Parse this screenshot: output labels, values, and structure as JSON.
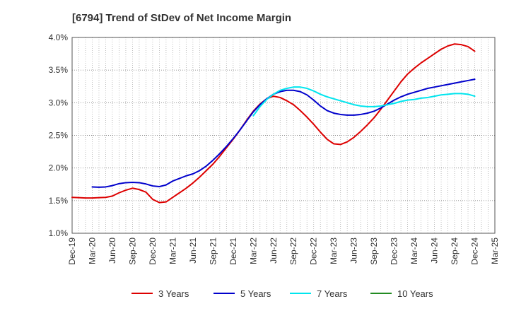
{
  "chart_data": {
    "type": "line",
    "title": "[6794]  Trend of StDev of Net Income Margin",
    "xlabel": "",
    "ylabel": "",
    "x_ticks": [
      "Dec-19",
      "Mar-20",
      "Jun-20",
      "Sep-20",
      "Dec-20",
      "Mar-21",
      "Jun-21",
      "Sep-21",
      "Dec-21",
      "Mar-22",
      "Jun-22",
      "Sep-22",
      "Dec-22",
      "Mar-23",
      "Jun-23",
      "Sep-23",
      "Dec-23",
      "Mar-24",
      "Jun-24",
      "Sep-24",
      "Dec-24",
      "Mar-25"
    ],
    "y_ticks": [
      "1.0%",
      "1.5%",
      "2.0%",
      "2.5%",
      "3.0%",
      "3.5%",
      "4.0%"
    ],
    "ylim": [
      1.0,
      4.0
    ],
    "y_unit": "%",
    "grid": "vertical and horizontal dotted",
    "legend_position": "bottom",
    "series": [
      {
        "name": "3 Years",
        "color": "#dd0000",
        "points": [
          [
            "Dec-19",
            1.55
          ],
          [
            "Jan-20",
            1.545
          ],
          [
            "Feb-20",
            1.54
          ],
          [
            "Mar-20",
            1.54
          ],
          [
            "Apr-20",
            1.545
          ],
          [
            "May-20",
            1.55
          ],
          [
            "Jun-20",
            1.57
          ],
          [
            "Jul-20",
            1.62
          ],
          [
            "Aug-20",
            1.66
          ],
          [
            "Sep-20",
            1.69
          ],
          [
            "Oct-20",
            1.67
          ],
          [
            "Nov-20",
            1.63
          ],
          [
            "Dec-20",
            1.52
          ],
          [
            "Jan-21",
            1.47
          ],
          [
            "Feb-21",
            1.48
          ],
          [
            "Mar-21",
            1.55
          ],
          [
            "Apr-21",
            1.62
          ],
          [
            "May-21",
            1.69
          ],
          [
            "Jun-21",
            1.77
          ],
          [
            "Jul-21",
            1.86
          ],
          [
            "Aug-21",
            1.96
          ],
          [
            "Sep-21",
            2.06
          ],
          [
            "Oct-21",
            2.18
          ],
          [
            "Nov-21",
            2.31
          ],
          [
            "Dec-21",
            2.44
          ],
          [
            "Jan-22",
            2.58
          ],
          [
            "Feb-22",
            2.73
          ],
          [
            "Mar-22",
            2.87
          ],
          [
            "Apr-22",
            2.98
          ],
          [
            "May-22",
            3.06
          ],
          [
            "Jun-22",
            3.1
          ],
          [
            "Jul-22",
            3.08
          ],
          [
            "Aug-22",
            3.03
          ],
          [
            "Sep-22",
            2.97
          ],
          [
            "Oct-22",
            2.88
          ],
          [
            "Nov-22",
            2.78
          ],
          [
            "Dec-22",
            2.67
          ],
          [
            "Jan-23",
            2.55
          ],
          [
            "Feb-23",
            2.44
          ],
          [
            "Mar-23",
            2.37
          ],
          [
            "Apr-23",
            2.36
          ],
          [
            "May-23",
            2.4
          ],
          [
            "Jun-23",
            2.47
          ],
          [
            "Jul-23",
            2.56
          ],
          [
            "Aug-23",
            2.66
          ],
          [
            "Sep-23",
            2.77
          ],
          [
            "Oct-23",
            2.9
          ],
          [
            "Nov-23",
            3.04
          ],
          [
            "Dec-23",
            3.18
          ],
          [
            "Jan-24",
            3.32
          ],
          [
            "Feb-24",
            3.44
          ],
          [
            "Mar-24",
            3.53
          ],
          [
            "Apr-24",
            3.61
          ],
          [
            "May-24",
            3.68
          ],
          [
            "Jun-24",
            3.75
          ],
          [
            "Jul-24",
            3.82
          ],
          [
            "Aug-24",
            3.87
          ],
          [
            "Sep-24",
            3.9
          ],
          [
            "Oct-24",
            3.89
          ],
          [
            "Nov-24",
            3.86
          ],
          [
            "Dec-24",
            3.79
          ]
        ]
      },
      {
        "name": "5 Years",
        "color": "#0000cc",
        "points": [
          [
            "Mar-20",
            1.71
          ],
          [
            "Apr-20",
            1.705
          ],
          [
            "May-20",
            1.71
          ],
          [
            "Jun-20",
            1.73
          ],
          [
            "Jul-20",
            1.76
          ],
          [
            "Aug-20",
            1.775
          ],
          [
            "Sep-20",
            1.78
          ],
          [
            "Oct-20",
            1.775
          ],
          [
            "Nov-20",
            1.755
          ],
          [
            "Dec-20",
            1.725
          ],
          [
            "Jan-21",
            1.715
          ],
          [
            "Feb-21",
            1.74
          ],
          [
            "Mar-21",
            1.8
          ],
          [
            "Apr-21",
            1.84
          ],
          [
            "May-21",
            1.88
          ],
          [
            "Jun-21",
            1.91
          ],
          [
            "Jul-21",
            1.96
          ],
          [
            "Aug-21",
            2.03
          ],
          [
            "Sep-21",
            2.12
          ],
          [
            "Oct-21",
            2.22
          ],
          [
            "Nov-21",
            2.33
          ],
          [
            "Dec-21",
            2.45
          ],
          [
            "Jan-22",
            2.58
          ],
          [
            "Feb-22",
            2.72
          ],
          [
            "Mar-22",
            2.86
          ],
          [
            "Apr-22",
            2.97
          ],
          [
            "May-22",
            3.06
          ],
          [
            "Jun-22",
            3.13
          ],
          [
            "Jul-22",
            3.17
          ],
          [
            "Aug-22",
            3.19
          ],
          [
            "Sep-22",
            3.19
          ],
          [
            "Oct-22",
            3.17
          ],
          [
            "Nov-22",
            3.12
          ],
          [
            "Dec-22",
            3.04
          ],
          [
            "Jan-23",
            2.95
          ],
          [
            "Feb-23",
            2.88
          ],
          [
            "Mar-23",
            2.84
          ],
          [
            "Apr-23",
            2.82
          ],
          [
            "May-23",
            2.81
          ],
          [
            "Jun-23",
            2.81
          ],
          [
            "Jul-23",
            2.82
          ],
          [
            "Aug-23",
            2.84
          ],
          [
            "Sep-23",
            2.87
          ],
          [
            "Oct-23",
            2.92
          ],
          [
            "Nov-23",
            2.98
          ],
          [
            "Dec-23",
            3.04
          ],
          [
            "Jan-24",
            3.09
          ],
          [
            "Feb-24",
            3.13
          ],
          [
            "Mar-24",
            3.16
          ],
          [
            "Apr-24",
            3.19
          ],
          [
            "May-24",
            3.22
          ],
          [
            "Jun-24",
            3.24
          ],
          [
            "Jul-24",
            3.26
          ],
          [
            "Aug-24",
            3.28
          ],
          [
            "Sep-24",
            3.3
          ],
          [
            "Oct-24",
            3.32
          ],
          [
            "Nov-24",
            3.34
          ],
          [
            "Dec-24",
            3.36
          ]
        ]
      },
      {
        "name": "7 Years",
        "color": "#00e5ee",
        "points": [
          [
            "Mar-22",
            2.8
          ],
          [
            "Apr-22",
            2.94
          ],
          [
            "May-22",
            3.05
          ],
          [
            "Jun-22",
            3.13
          ],
          [
            "Jul-22",
            3.19
          ],
          [
            "Aug-22",
            3.22
          ],
          [
            "Sep-22",
            3.24
          ],
          [
            "Oct-22",
            3.24
          ],
          [
            "Nov-22",
            3.22
          ],
          [
            "Dec-22",
            3.18
          ],
          [
            "Jan-23",
            3.13
          ],
          [
            "Feb-23",
            3.09
          ],
          [
            "Mar-23",
            3.06
          ],
          [
            "Apr-23",
            3.03
          ],
          [
            "May-23",
            3.0
          ],
          [
            "Jun-23",
            2.97
          ],
          [
            "Jul-23",
            2.95
          ],
          [
            "Aug-23",
            2.94
          ],
          [
            "Sep-23",
            2.94
          ],
          [
            "Oct-23",
            2.95
          ],
          [
            "Nov-23",
            2.97
          ],
          [
            "Dec-23",
            2.99
          ],
          [
            "Jan-24",
            3.02
          ],
          [
            "Feb-24",
            3.04
          ],
          [
            "Mar-24",
            3.05
          ],
          [
            "Apr-24",
            3.07
          ],
          [
            "May-24",
            3.08
          ],
          [
            "Jun-24",
            3.1
          ],
          [
            "Jul-24",
            3.12
          ],
          [
            "Aug-24",
            3.13
          ],
          [
            "Sep-24",
            3.14
          ],
          [
            "Oct-24",
            3.14
          ],
          [
            "Nov-24",
            3.13
          ],
          [
            "Dec-24",
            3.1
          ]
        ]
      },
      {
        "name": "10 Years",
        "color": "#228b22",
        "points": []
      }
    ]
  }
}
